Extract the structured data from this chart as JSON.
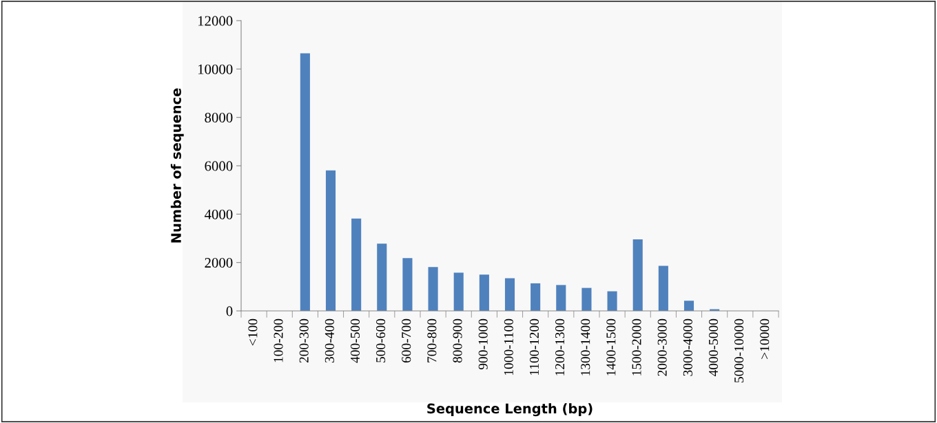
{
  "chart_data": {
    "type": "bar",
    "xlabel": "Sequence Length (bp)",
    "ylabel": "Number of sequence",
    "categories": [
      "<100",
      "100-200",
      "200-300",
      "300-400",
      "400-500",
      "500-600",
      "600-700",
      "700-800",
      "800-900",
      "900-1000",
      "1000-1100",
      "1100-1200",
      "1200-1300",
      "1300-1400",
      "1400-1500",
      "1500-2000",
      "2000-3000",
      "3000-4000",
      "4000-5000",
      "5000-10000",
      ">10000"
    ],
    "values": [
      0,
      0,
      10650,
      5810,
      3820,
      2780,
      2180,
      1810,
      1580,
      1500,
      1350,
      1140,
      1070,
      950,
      810,
      2960,
      1860,
      420,
      70,
      0,
      0
    ],
    "color": "#4f81bd",
    "ylim": [
      0,
      12000
    ],
    "yticks": [
      0,
      2000,
      4000,
      6000,
      8000,
      10000,
      12000
    ],
    "grid": false,
    "legend": false
  }
}
